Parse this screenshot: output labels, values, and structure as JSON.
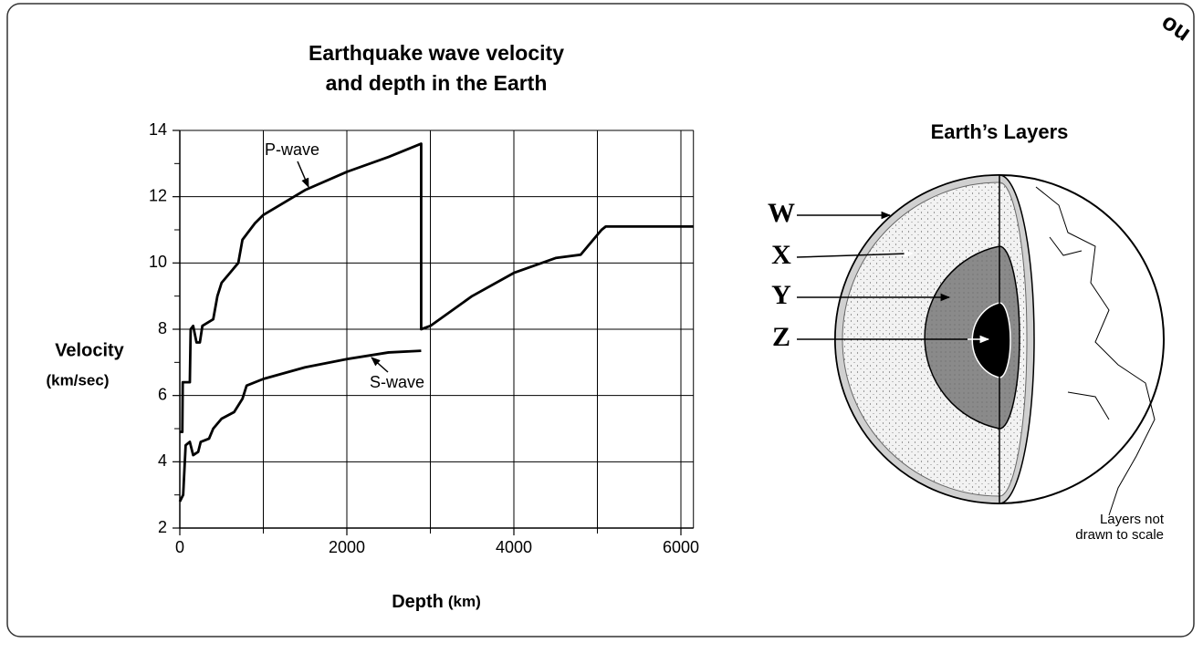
{
  "chart_data": {
    "type": "line",
    "title_lines": [
      "Earthquake wave velocity",
      "and depth in the Earth"
    ],
    "ylabel": "Velocity",
    "ylabel_unit": "(km/sec)",
    "xlabel": "Depth",
    "xlabel_unit": "(km)",
    "xlim": [
      0,
      6150
    ],
    "ylim": [
      2,
      14
    ],
    "xticks": [
      0,
      2000,
      4000,
      6000
    ],
    "xminor_ticks": [
      1000,
      3000,
      5000
    ],
    "yticks": [
      2,
      4,
      6,
      8,
      10,
      12,
      14
    ],
    "yminor_ticks": [
      3,
      5,
      7,
      9,
      11,
      13
    ],
    "grid": true,
    "series": [
      {
        "name": "P-wave",
        "color": "#000000",
        "x": [
          0,
          30,
          35,
          120,
          130,
          160,
          200,
          240,
          270,
          400,
          450,
          500,
          600,
          700,
          750,
          900,
          1000,
          1500,
          2000,
          2500,
          2890,
          2890,
          3000,
          3500,
          4000,
          4500,
          4800,
          5050,
          5100,
          6150
        ],
        "values": [
          4.9,
          4.9,
          6.4,
          6.4,
          8.0,
          8.1,
          7.6,
          7.6,
          8.1,
          8.3,
          9.0,
          9.4,
          9.7,
          10.0,
          10.7,
          11.2,
          11.45,
          12.2,
          12.75,
          13.2,
          13.6,
          8.0,
          8.1,
          9.0,
          9.7,
          10.15,
          10.25,
          11.0,
          11.1,
          11.1
        ]
      },
      {
        "name": "S-wave",
        "color": "#000000",
        "x": [
          0,
          40,
          70,
          120,
          160,
          220,
          250,
          350,
          400,
          500,
          650,
          750,
          800,
          1000,
          1500,
          2000,
          2500,
          2890
        ],
        "values": [
          2.8,
          3.0,
          4.5,
          4.6,
          4.2,
          4.3,
          4.6,
          4.7,
          5.0,
          5.3,
          5.5,
          5.9,
          6.3,
          6.5,
          6.85,
          7.1,
          7.3,
          7.35
        ]
      }
    ]
  },
  "diagram": {
    "title": "Earth’s Layers",
    "labels": [
      "W",
      "X",
      "Y",
      "Z"
    ],
    "note_lines": [
      "Layers not",
      "drawn to scale"
    ]
  },
  "stamp": "ou"
}
